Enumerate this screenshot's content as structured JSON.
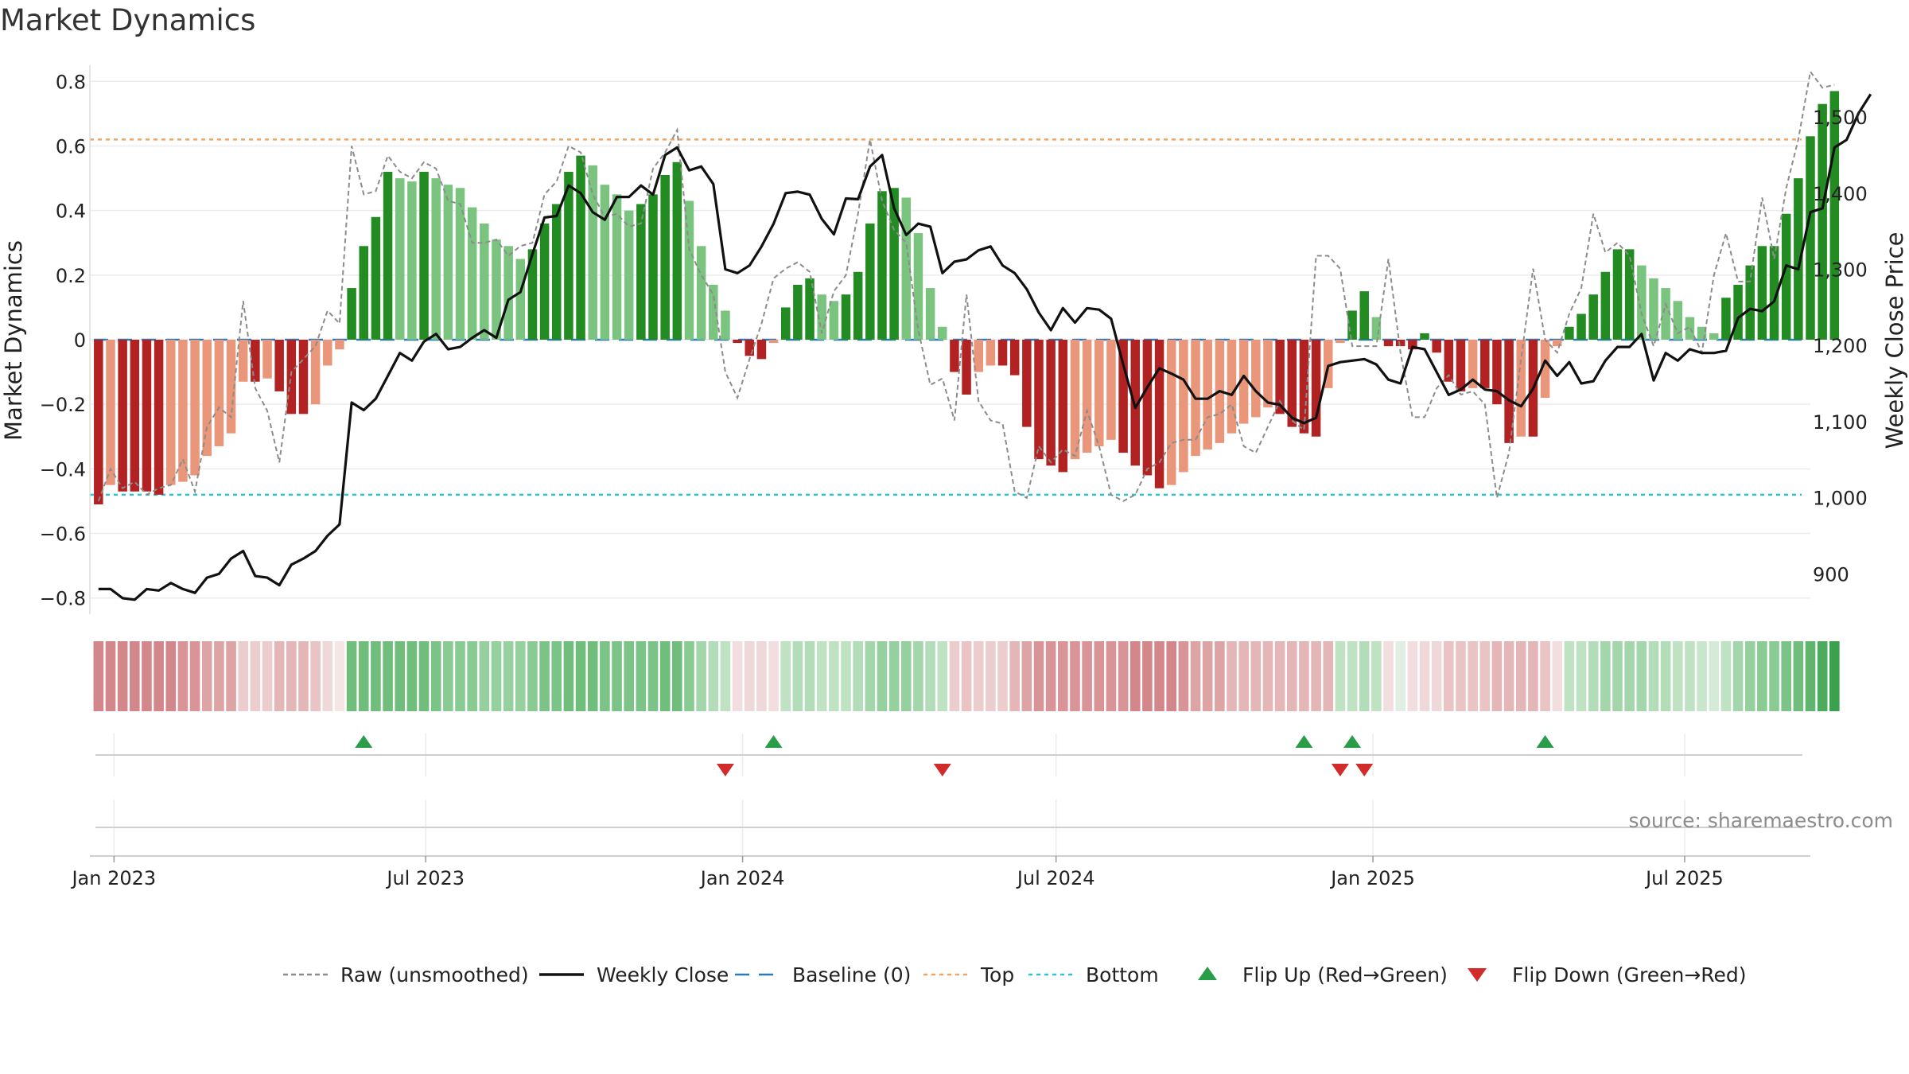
{
  "chart_data": {
    "type": "bar",
    "title": "Market Dynamics",
    "ylabel": "Market Dynamics",
    "y2label": "Weekly Close Price",
    "ylim": [
      -0.85,
      0.85
    ],
    "y2lim": [
      847,
      1568
    ],
    "yticks": [
      "0.8",
      "0.6",
      "0.4",
      "0.2",
      "0",
      "−0.2",
      "−0.4",
      "−0.6",
      "−0.8"
    ],
    "y2ticks": [
      "900",
      "1,000",
      "1,100",
      "1,200",
      "1,300",
      "1,400",
      "1,500"
    ],
    "xlim": [
      "2022-12-18",
      "2025-09-12"
    ],
    "x_ticks": [
      {
        "date": "2023-01-01",
        "label": "Jan 2023"
      },
      {
        "date": "2023-07-01",
        "label": "Jul 2023"
      },
      {
        "date": "2024-01-01",
        "label": "Jan 2024"
      },
      {
        "date": "2024-07-01",
        "label": "Jul 2024"
      },
      {
        "date": "2025-01-01",
        "label": "Jan 2025"
      },
      {
        "date": "2025-07-01",
        "label": "Jul 2025"
      }
    ],
    "start_date": "2022-12-23",
    "week_step_days": 7,
    "top_threshold": 0.62,
    "bottom_threshold": -0.48,
    "baseline": 0,
    "grid": true,
    "series": [
      {
        "name": "Market Dynamics",
        "kind": "bar",
        "values": [
          -0.51,
          -0.45,
          -0.47,
          -0.47,
          -0.47,
          -0.48,
          -0.45,
          -0.44,
          -0.42,
          -0.36,
          -0.33,
          -0.29,
          -0.13,
          -0.13,
          -0.12,
          -0.16,
          -0.23,
          -0.23,
          -0.2,
          -0.08,
          -0.03,
          0.16,
          0.29,
          0.38,
          0.52,
          0.5,
          0.49,
          0.52,
          0.5,
          0.48,
          0.47,
          0.41,
          0.36,
          0.31,
          0.29,
          0.25,
          0.28,
          0.36,
          0.42,
          0.52,
          0.57,
          0.54,
          0.48,
          0.45,
          0.4,
          0.42,
          0.45,
          0.51,
          0.55,
          0.43,
          0.29,
          0.17,
          0.09,
          -0.01,
          -0.05,
          -0.06,
          -0.01,
          0.1,
          0.17,
          0.19,
          0.14,
          0.12,
          0.14,
          0.21,
          0.36,
          0.46,
          0.47,
          0.44,
          0.33,
          0.16,
          0.04,
          -0.1,
          -0.17,
          -0.1,
          -0.08,
          -0.08,
          -0.11,
          -0.27,
          -0.37,
          -0.39,
          -0.41,
          -0.37,
          -0.35,
          -0.33,
          -0.31,
          -0.35,
          -0.39,
          -0.42,
          -0.46,
          -0.45,
          -0.41,
          -0.36,
          -0.34,
          -0.32,
          -0.29,
          -0.26,
          -0.24,
          -0.21,
          -0.23,
          -0.27,
          -0.29,
          -0.3,
          -0.15,
          -0.01,
          0.09,
          0.15,
          0.07,
          -0.02,
          -0.02,
          -0.03,
          0.02,
          -0.04,
          -0.13,
          -0.16,
          -0.15,
          -0.15,
          -0.2,
          -0.32,
          -0.3,
          -0.3,
          -0.18,
          -0.02,
          0.04,
          0.08,
          0.14,
          0.21,
          0.28,
          0.28,
          0.23,
          0.19,
          0.16,
          0.12,
          0.07,
          0.04,
          0.02,
          0.13,
          0.17,
          0.23,
          0.29,
          0.29,
          0.39,
          0.5,
          0.63,
          0.73,
          0.77
        ]
      },
      {
        "name": "Raw (unsmoothed)",
        "kind": "dashed-line",
        "values": [
          -0.5,
          -0.4,
          -0.46,
          -0.44,
          -0.48,
          -0.46,
          -0.45,
          -0.37,
          -0.47,
          -0.27,
          -0.21,
          -0.24,
          0.12,
          -0.15,
          -0.22,
          -0.38,
          -0.1,
          -0.06,
          -0.02,
          0.09,
          0.05,
          0.6,
          0.45,
          0.46,
          0.57,
          0.52,
          0.5,
          0.55,
          0.53,
          0.43,
          0.42,
          0.3,
          0.3,
          0.31,
          0.26,
          0.29,
          0.3,
          0.45,
          0.49,
          0.6,
          0.58,
          0.45,
          0.38,
          0.39,
          0.35,
          0.36,
          0.53,
          0.58,
          0.65,
          0.28,
          0.2,
          0.14,
          -0.1,
          -0.18,
          -0.06,
          0.05,
          0.19,
          0.22,
          0.24,
          0.21,
          0.02,
          0.15,
          0.2,
          0.39,
          0.62,
          0.43,
          0.34,
          0.3,
          0.03,
          -0.14,
          -0.12,
          -0.25,
          0.14,
          -0.19,
          -0.25,
          -0.26,
          -0.47,
          -0.49,
          -0.33,
          -0.38,
          -0.34,
          -0.36,
          -0.22,
          -0.33,
          -0.48,
          -0.5,
          -0.48,
          -0.4,
          -0.38,
          -0.32,
          -0.31,
          -0.31,
          -0.24,
          -0.23,
          -0.2,
          -0.33,
          -0.35,
          -0.27,
          -0.19,
          -0.25,
          -0.28,
          0.26,
          0.26,
          0.22,
          -0.02,
          -0.02,
          -0.02,
          0.25,
          -0.04,
          -0.24,
          -0.24,
          -0.15,
          -0.11,
          -0.17,
          -0.16,
          -0.2,
          -0.49,
          -0.35,
          -0.06,
          0.22,
          0,
          -0.04,
          0.08,
          0.16,
          0.39,
          0.27,
          0.3,
          0.26,
          0.08,
          -0.02,
          0.11,
          0.02,
          0.04,
          -0.04,
          0.2,
          0.33,
          0.18,
          0.18,
          0.44,
          0.25,
          0.47,
          0.62,
          0.83,
          0.78,
          0.79
        ]
      },
      {
        "name": "Weekly Close",
        "kind": "line",
        "axis": "right",
        "values": [
          880,
          880,
          868,
          866,
          880,
          878,
          888,
          880,
          875,
          895,
          900,
          920,
          930,
          897,
          895,
          885,
          912,
          920,
          930,
          950,
          965,
          1125,
          1115,
          1130,
          1160,
          1190,
          1180,
          1205,
          1215,
          1195,
          1198,
          1210,
          1220,
          1210,
          1260,
          1270,
          1320,
          1368,
          1370,
          1410,
          1400,
          1375,
          1365,
          1395,
          1395,
          1410,
          1398,
          1450,
          1460,
          1430,
          1435,
          1412,
          1300,
          1295,
          1305,
          1330,
          1360,
          1400,
          1402,
          1398,
          1366,
          1346,
          1393,
          1392,
          1435,
          1450,
          1380,
          1345,
          1360,
          1356,
          1295,
          1310,
          1313,
          1325,
          1330,
          1305,
          1295,
          1274,
          1243,
          1220,
          1249,
          1230,
          1249,
          1247,
          1235,
          1175,
          1118,
          1145,
          1170,
          1163,
          1155,
          1130,
          1130,
          1140,
          1135,
          1160,
          1140,
          1125,
          1122,
          1105,
          1098,
          1105,
          1173,
          1178,
          1180,
          1182,
          1175,
          1155,
          1150,
          1198,
          1195,
          1165,
          1135,
          1142,
          1155,
          1142,
          1140,
          1128,
          1120,
          1143,
          1180,
          1160,
          1178,
          1150,
          1153,
          1180,
          1198,
          1198,
          1215,
          1154,
          1190,
          1180,
          1195,
          1190,
          1190,
          1193,
          1236,
          1248,
          1245,
          1258,
          1305,
          1300,
          1375,
          1380,
          1460,
          1470,
          1505,
          1530
        ]
      }
    ],
    "strip_colors": [
      "#d4878a",
      "#d4878a",
      "#d4878a",
      "#d4878a",
      "#d4878a",
      "#d4878a",
      "#d4878a",
      "#d89496",
      "#d89496",
      "#dda4a5",
      "#dda4a5",
      "#dda4a5",
      "#eccdcd",
      "#eccdcd",
      "#eccdcd",
      "#e4b6b7",
      "#e4b6b7",
      "#e4b6b7",
      "#eac3c4",
      "#efd8d8",
      "#f5e5e5",
      "#70bd7c",
      "#70bd7c",
      "#70bd7c",
      "#70bd7c",
      "#70bd7c",
      "#70bd7c",
      "#70bd7c",
      "#7cc387",
      "#8acb94",
      "#8acb94",
      "#8acb94",
      "#96d09e",
      "#96d09e",
      "#96d09e",
      "#96d09e",
      "#8acb94",
      "#7cc387",
      "#7cc387",
      "#70bd7c",
      "#70bd7c",
      "#70bd7c",
      "#7cc387",
      "#7cc387",
      "#7cc387",
      "#7cc387",
      "#7cc387",
      "#70bd7c",
      "#70bd7c",
      "#8acb94",
      "#a4d6ac",
      "#b3dcb8",
      "#bfe2c3",
      "#f2dede",
      "#efd8d8",
      "#efd8d8",
      "#f2dede",
      "#bfe2c3",
      "#b3dcb8",
      "#b3dcb8",
      "#bfe2c3",
      "#bfe2c3",
      "#bfe2c3",
      "#b3dcb8",
      "#a4d6ac",
      "#96d09e",
      "#96d09e",
      "#96d09e",
      "#a4d6ac",
      "#b3dcb8",
      "#bfe2c3",
      "#eccdcd",
      "#eac3c4",
      "#eccdcd",
      "#eccdcd",
      "#eccdcd",
      "#e4b6b7",
      "#dda4a5",
      "#d89496",
      "#d89496",
      "#d89496",
      "#d89496",
      "#d89496",
      "#d89496",
      "#d89496",
      "#d89496",
      "#d4878a",
      "#d4878a",
      "#d4878a",
      "#d4878a",
      "#d89496",
      "#dda4a5",
      "#dda4a5",
      "#dda4a5",
      "#e4b6b7",
      "#e4b6b7",
      "#e4b6b7",
      "#e4b6b7",
      "#e4b6b7",
      "#e4b6b7",
      "#e4b6b7",
      "#e4b6b7",
      "#e4b6b7",
      "#bfe2c3",
      "#bfe2c3",
      "#b3dcb8",
      "#bfe2c3",
      "#f2dede",
      "#e1efe3",
      "#f2dede",
      "#efd8d8",
      "#efd8d8",
      "#eac3c4",
      "#eac3c4",
      "#eac3c4",
      "#eac3c4",
      "#e4b6b7",
      "#e4b6b7",
      "#e4b6b7",
      "#e4b6b7",
      "#eac3c4",
      "#f2dede",
      "#bfe2c3",
      "#bfe2c3",
      "#b3dcb8",
      "#a4d6ac",
      "#a4d6ac",
      "#a4d6ac",
      "#a4d6ac",
      "#b3dcb8",
      "#b3dcb8",
      "#bfe2c3",
      "#bfe2c3",
      "#c8e6cc",
      "#d4ebd7",
      "#bfe2c3",
      "#a4d6ac",
      "#96d09e",
      "#8acb94",
      "#8acb94",
      "#7cc387",
      "#70bd7c",
      "#5fb46e",
      "#4dab5e",
      "#3aa24f"
    ],
    "flip_up": [
      "2023-05-26",
      "2024-01-19",
      "2024-11-22",
      "2024-12-20",
      "2025-04-11"
    ],
    "flip_down": [
      "2023-12-22",
      "2024-04-26",
      "2024-12-13",
      "2024-12-27"
    ],
    "legend": [
      {
        "label": "Raw (unsmoothed)",
        "kind": "dashed-line",
        "color": "#8c8c8c"
      },
      {
        "label": "Weekly Close",
        "kind": "line",
        "color": "#111111"
      },
      {
        "label": "Baseline (0)",
        "kind": "dashed-line",
        "color": "#2b7bba"
      },
      {
        "label": "Top",
        "kind": "dotted-line",
        "color": "#f4a261"
      },
      {
        "label": "Bottom",
        "kind": "dotted-line",
        "color": "#2ec4d6"
      },
      {
        "label": "Flip Up (Red→Green)",
        "kind": "triangle-up",
        "color": "#2a9d48"
      },
      {
        "label": "Flip Down (Green→Red)",
        "kind": "triangle-down",
        "color": "#d12b2b"
      }
    ],
    "legend_position": "bottom",
    "colors": {
      "bar_green_strong": "#228b22",
      "bar_green_light": "#7bc47f",
      "bar_red_strong": "#b22222",
      "bar_red_light": "#e9967a",
      "raw": "#8c8c8c",
      "close": "#111111",
      "baseline": "#2b7bba",
      "top": "#f4a261",
      "bottom": "#2ec4d6",
      "flip_up": "#2a9d48",
      "flip_down": "#d12b2b"
    }
  },
  "source": "source: sharemaestro.com"
}
